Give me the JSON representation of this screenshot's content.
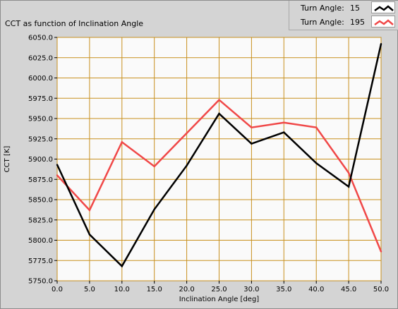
{
  "panel": {
    "title": "CCT as function of Inclination Angle"
  },
  "legend": {
    "items": [
      {
        "label": "Turn Angle:",
        "value": "15",
        "color": "#000000"
      },
      {
        "label": "Turn Angle:",
        "value": "195",
        "color": "#f04848"
      }
    ]
  },
  "chart_data": {
    "type": "line",
    "title": "CCT as function of Inclination Angle",
    "xlabel": "Inclination Angle [deg]",
    "ylabel": "CCT [K]",
    "xlim": [
      0,
      50
    ],
    "ylim": [
      5750,
      6050
    ],
    "x_ticks": [
      "0.0",
      "5.0",
      "10.0",
      "15.0",
      "20.0",
      "25.0",
      "30.0",
      "35.0",
      "40.0",
      "45.0",
      "50.0"
    ],
    "y_ticks": [
      "5750.0",
      "5775.0",
      "5800.0",
      "5825.0",
      "5850.0",
      "5875.0",
      "5900.0",
      "5925.0",
      "5950.0",
      "5975.0",
      "6000.0",
      "6025.0",
      "6050.0"
    ],
    "grid": true,
    "grid_color": "#c8901e",
    "background": "#fafafa",
    "legend_position": "top-right",
    "x": [
      0,
      5,
      10,
      15,
      20,
      25,
      30,
      35,
      40,
      45,
      50
    ],
    "series": [
      {
        "name": "Turn Angle: 15",
        "color": "#000000",
        "values": [
          5893,
          5807,
          5768,
          5838,
          5892,
          5956,
          5919,
          5933,
          5895,
          5866,
          6042
        ]
      },
      {
        "name": "Turn Angle: 195",
        "color": "#f04848",
        "values": [
          5880,
          5837,
          5921,
          5891,
          5932,
          5973,
          5939,
          5945,
          5939,
          5883,
          5786
        ]
      }
    ]
  }
}
